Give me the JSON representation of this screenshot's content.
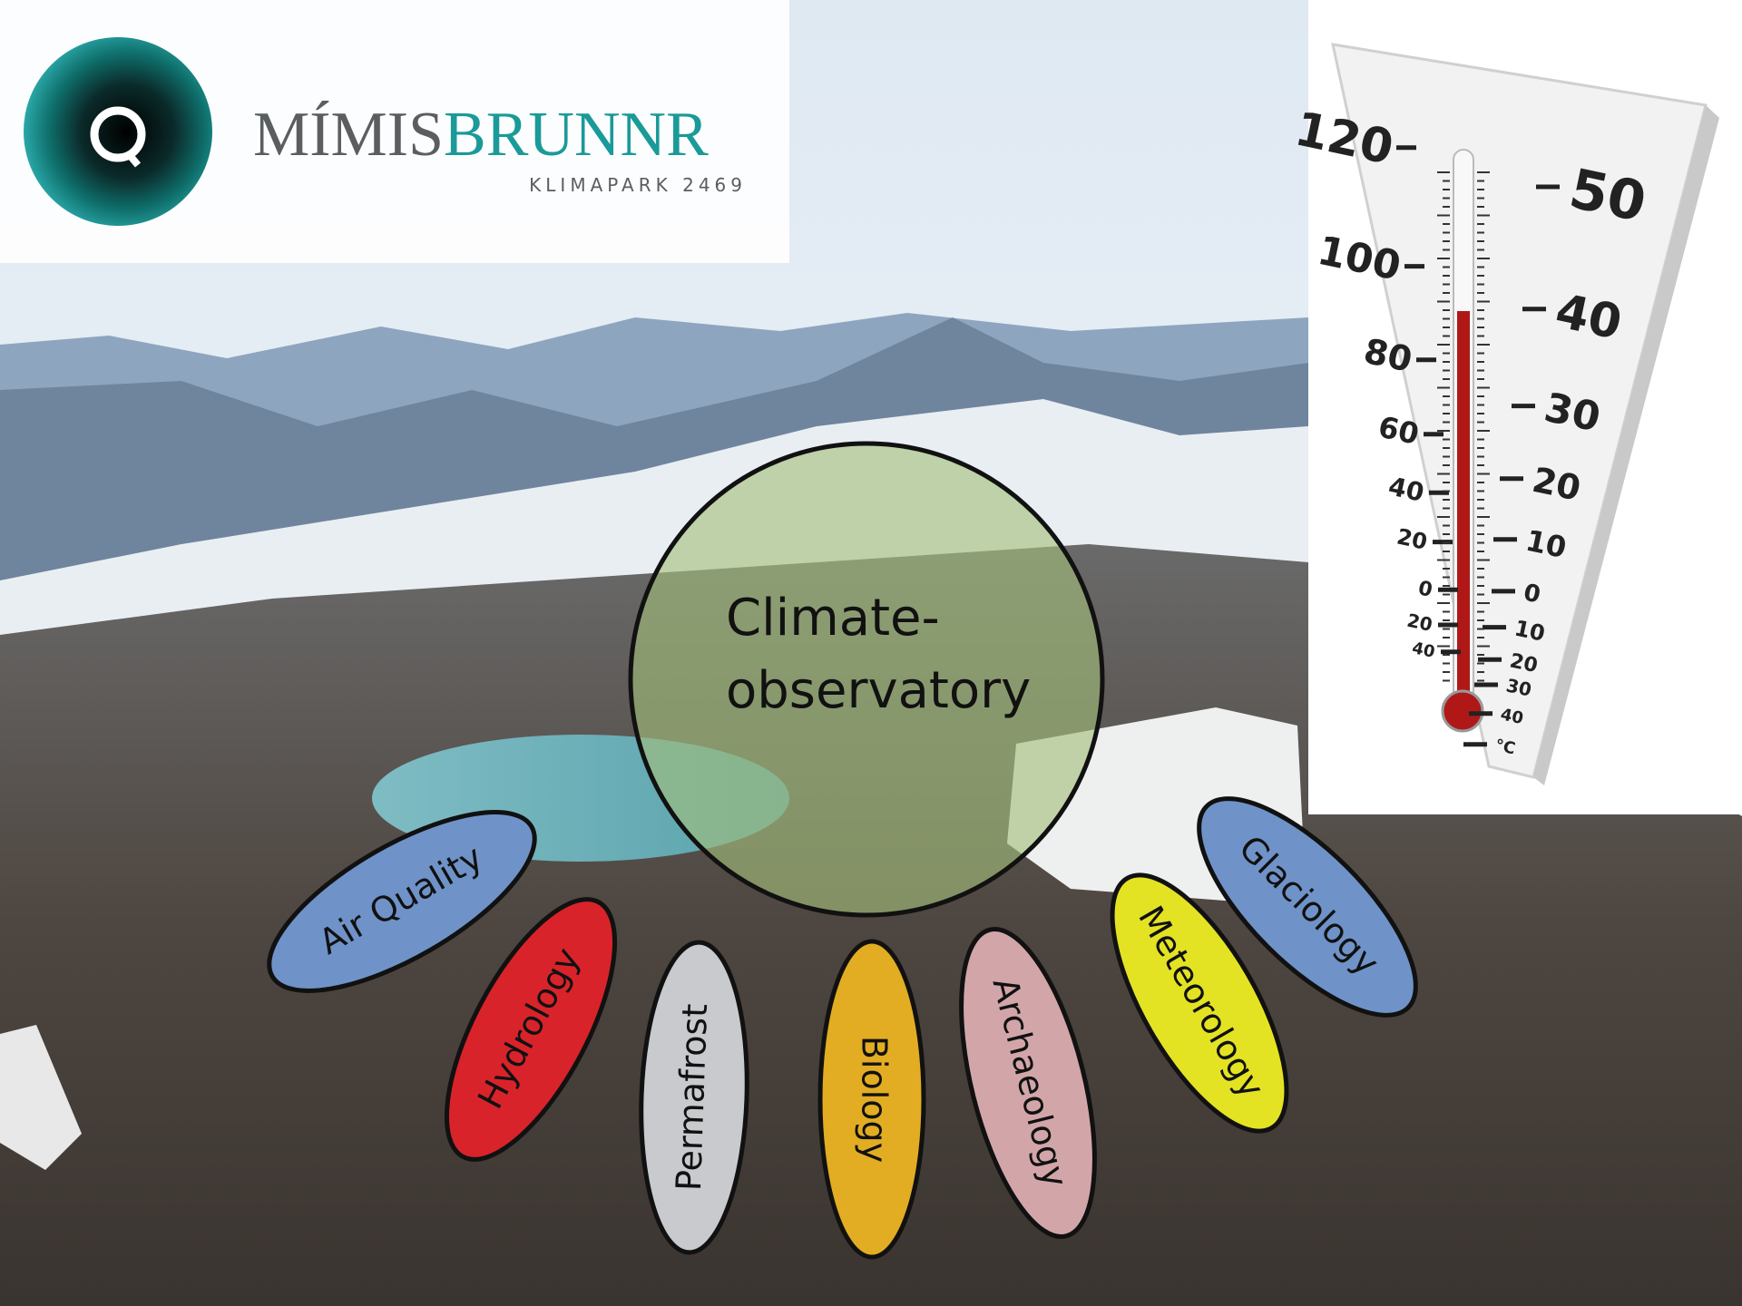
{
  "logo": {
    "name_part1": "MÍMIS",
    "name_part2": "BRUNNR",
    "subtitle": "KLIMAPARK 2469"
  },
  "center": {
    "lines": [
      "Climate-",
      "observatory"
    ]
  },
  "nodes": [
    {
      "label": "Air Quality",
      "color": "#6f93c8"
    },
    {
      "label": "Hydrology",
      "color": "#d9232a"
    },
    {
      "label": "Permafrost",
      "color": "#c8cace"
    },
    {
      "label": "Biology",
      "color": "#e2ad22"
    },
    {
      "label": "Archaeology",
      "color": "#d2a6a9"
    },
    {
      "label": "Meteorology",
      "color": "#e3e324"
    },
    {
      "label": "Glaciology",
      "color": "#6f93c8"
    }
  ],
  "thermometer": {
    "left_scale": [
      "120",
      "100",
      "80",
      "60",
      "40",
      "20",
      "0",
      "20",
      "40"
    ],
    "right_scale": [
      "50",
      "40",
      "30",
      "20",
      "10",
      "0",
      "10",
      "20",
      "30",
      "40",
      "°C"
    ]
  }
}
